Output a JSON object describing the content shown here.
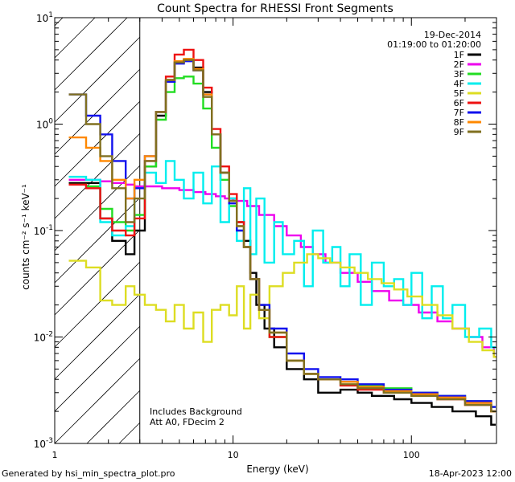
{
  "chart_data": {
    "type": "line",
    "title": "Count Spectra for RHESSI Front Segments",
    "xlabel": "Energy (keV)",
    "ylabel": "counts cm⁻² s⁻¹ keV⁻¹",
    "x_scale": "log",
    "y_scale": "log",
    "xlim": [
      1.0,
      300
    ],
    "ylim": [
      0.001,
      10
    ],
    "x_ticks": [
      {
        "v": 1,
        "label": "1"
      },
      {
        "v": 10,
        "label": "10"
      },
      {
        "v": 100,
        "label": "100"
      }
    ],
    "y_ticks": [
      {
        "v": 10,
        "base": "10",
        "exp": "1"
      },
      {
        "v": 1,
        "base": "10",
        "exp": "0"
      },
      {
        "v": 0.1,
        "base": "10",
        "exp": "-1"
      },
      {
        "v": 0.01,
        "base": "10",
        "exp": "-2"
      },
      {
        "v": 0.001,
        "base": "10",
        "exp": "-3"
      }
    ],
    "shaded_region": [
      1.0,
      3.0
    ],
    "annotations": {
      "date": "19-Dec-2014",
      "time_range": "01:19:00 to 01:20:00",
      "note1": "Includes Background",
      "note2": "Att A0, FDecim 2"
    },
    "legend_position": "top-right",
    "series": [
      {
        "name": "1F",
        "color": "#000000",
        "points": [
          [
            1.2,
            0.28
          ],
          [
            1.5,
            0.28
          ],
          [
            1.8,
            0.13
          ],
          [
            2.1,
            0.08
          ],
          [
            2.5,
            0.06
          ],
          [
            2.8,
            0.1
          ],
          [
            3.2,
            0.4
          ],
          [
            3.7,
            1.2
          ],
          [
            4.2,
            2.5
          ],
          [
            4.7,
            3.8
          ],
          [
            5.3,
            4.0
          ],
          [
            6,
            3.4
          ],
          [
            6.8,
            2.0
          ],
          [
            7.6,
            0.8
          ],
          [
            8.5,
            0.35
          ],
          [
            9.5,
            0.2
          ],
          [
            10.5,
            0.12
          ],
          [
            11.5,
            0.08
          ],
          [
            12.5,
            0.04
          ],
          [
            13.5,
            0.02
          ],
          [
            15,
            0.012
          ],
          [
            17,
            0.008
          ],
          [
            20,
            0.005
          ],
          [
            25,
            0.004
          ],
          [
            30,
            0.003
          ],
          [
            40,
            0.0032
          ],
          [
            50,
            0.003
          ],
          [
            60,
            0.0028
          ],
          [
            80,
            0.0026
          ],
          [
            100,
            0.0024
          ],
          [
            130,
            0.0022
          ],
          [
            170,
            0.002
          ],
          [
            230,
            0.0018
          ],
          [
            280,
            0.0015
          ]
        ]
      },
      {
        "name": "2F",
        "color": "#ee00ee",
        "points": [
          [
            1.2,
            0.3
          ],
          [
            1.5,
            0.3
          ],
          [
            1.8,
            0.29
          ],
          [
            2.1,
            0.28
          ],
          [
            2.5,
            0.27
          ],
          [
            2.8,
            0.26
          ],
          [
            3.2,
            0.26
          ],
          [
            4,
            0.25
          ],
          [
            5,
            0.24
          ],
          [
            6,
            0.23
          ],
          [
            7,
            0.22
          ],
          [
            8,
            0.21
          ],
          [
            9,
            0.2
          ],
          [
            10,
            0.19
          ],
          [
            12,
            0.17
          ],
          [
            14,
            0.14
          ],
          [
            17,
            0.11
          ],
          [
            20,
            0.09
          ],
          [
            24,
            0.07
          ],
          [
            28,
            0.06
          ],
          [
            33,
            0.05
          ],
          [
            40,
            0.04
          ],
          [
            50,
            0.033
          ],
          [
            60,
            0.027
          ],
          [
            75,
            0.022
          ],
          [
            90,
            0.02
          ],
          [
            110,
            0.017
          ],
          [
            140,
            0.014
          ],
          [
            170,
            0.012
          ],
          [
            210,
            0.01
          ],
          [
            250,
            0.008
          ],
          [
            290,
            0.0065
          ]
        ]
      },
      {
        "name": "3F",
        "color": "#22dd22",
        "points": [
          [
            1.2,
            0.27
          ],
          [
            1.5,
            0.26
          ],
          [
            1.8,
            0.16
          ],
          [
            2.1,
            0.12
          ],
          [
            2.5,
            0.1
          ],
          [
            2.8,
            0.14
          ],
          [
            3.2,
            0.4
          ],
          [
            3.7,
            1.1
          ],
          [
            4.2,
            2.0
          ],
          [
            4.7,
            2.7
          ],
          [
            5.3,
            2.8
          ],
          [
            6,
            2.4
          ],
          [
            6.8,
            1.4
          ],
          [
            7.6,
            0.6
          ],
          [
            8.5,
            0.3
          ],
          [
            9.5,
            0.17
          ],
          [
            10.5,
            0.1
          ],
          [
            11.5,
            0.07
          ],
          [
            12.5,
            0.035
          ],
          [
            14,
            0.018
          ],
          [
            16,
            0.01
          ],
          [
            20,
            0.006
          ],
          [
            25,
            0.0045
          ],
          [
            30,
            0.004
          ],
          [
            40,
            0.0038
          ],
          [
            50,
            0.0035
          ],
          [
            70,
            0.0033
          ],
          [
            100,
            0.003
          ],
          [
            140,
            0.0028
          ],
          [
            200,
            0.0025
          ],
          [
            280,
            0.0022
          ]
        ]
      },
      {
        "name": "4F",
        "color": "#00eeee",
        "points": [
          [
            1.2,
            0.32
          ],
          [
            1.5,
            0.3
          ],
          [
            1.8,
            0.12
          ],
          [
            2.1,
            0.09
          ],
          [
            2.5,
            0.11
          ],
          [
            2.8,
            0.25
          ],
          [
            3.2,
            0.35
          ],
          [
            3.7,
            0.28
          ],
          [
            4.2,
            0.45
          ],
          [
            4.7,
            0.3
          ],
          [
            5.3,
            0.2
          ],
          [
            6,
            0.35
          ],
          [
            6.8,
            0.18
          ],
          [
            7.6,
            0.4
          ],
          [
            8.5,
            0.12
          ],
          [
            9.5,
            0.2
          ],
          [
            10.5,
            0.08
          ],
          [
            11.5,
            0.25
          ],
          [
            12.5,
            0.06
          ],
          [
            13.5,
            0.2
          ],
          [
            15,
            0.05
          ],
          [
            17,
            0.12
          ],
          [
            19,
            0.06
          ],
          [
            22,
            0.08
          ],
          [
            25,
            0.03
          ],
          [
            28,
            0.1
          ],
          [
            32,
            0.05
          ],
          [
            36,
            0.07
          ],
          [
            40,
            0.03
          ],
          [
            45,
            0.06
          ],
          [
            52,
            0.02
          ],
          [
            60,
            0.05
          ],
          [
            70,
            0.03
          ],
          [
            80,
            0.035
          ],
          [
            90,
            0.02
          ],
          [
            100,
            0.04
          ],
          [
            115,
            0.015
          ],
          [
            130,
            0.03
          ],
          [
            150,
            0.015
          ],
          [
            170,
            0.02
          ],
          [
            200,
            0.01
          ],
          [
            240,
            0.012
          ],
          [
            280,
            0.008
          ]
        ]
      },
      {
        "name": "5F",
        "color": "#dddd22",
        "points": [
          [
            1.2,
            0.052
          ],
          [
            1.5,
            0.045
          ],
          [
            1.8,
            0.022
          ],
          [
            2.1,
            0.02
          ],
          [
            2.5,
            0.03
          ],
          [
            2.8,
            0.025
          ],
          [
            3.2,
            0.02
          ],
          [
            3.7,
            0.018
          ],
          [
            4.2,
            0.014
          ],
          [
            4.7,
            0.02
          ],
          [
            5.3,
            0.012
          ],
          [
            6,
            0.017
          ],
          [
            6.8,
            0.009
          ],
          [
            7.6,
            0.018
          ],
          [
            8.5,
            0.02
          ],
          [
            9.5,
            0.016
          ],
          [
            10.5,
            0.03
          ],
          [
            11.5,
            0.012
          ],
          [
            12.5,
            0.025
          ],
          [
            14,
            0.015
          ],
          [
            16,
            0.03
          ],
          [
            19,
            0.04
          ],
          [
            22,
            0.05
          ],
          [
            26,
            0.06
          ],
          [
            30,
            0.055
          ],
          [
            35,
            0.05
          ],
          [
            40,
            0.045
          ],
          [
            48,
            0.04
          ],
          [
            57,
            0.035
          ],
          [
            68,
            0.032
          ],
          [
            80,
            0.028
          ],
          [
            95,
            0.024
          ],
          [
            115,
            0.02
          ],
          [
            140,
            0.016
          ],
          [
            170,
            0.012
          ],
          [
            210,
            0.009
          ],
          [
            250,
            0.0075
          ],
          [
            290,
            0.0065
          ]
        ]
      },
      {
        "name": "6F",
        "color": "#ee1111",
        "points": [
          [
            1.2,
            0.27
          ],
          [
            1.5,
            0.25
          ],
          [
            1.8,
            0.13
          ],
          [
            2.1,
            0.1
          ],
          [
            2.5,
            0.09
          ],
          [
            2.8,
            0.13
          ],
          [
            3.2,
            0.45
          ],
          [
            3.7,
            1.3
          ],
          [
            4.2,
            2.8
          ],
          [
            4.7,
            4.5
          ],
          [
            5.3,
            5.0
          ],
          [
            6,
            4.0
          ],
          [
            6.8,
            2.2
          ],
          [
            7.6,
            0.9
          ],
          [
            8.5,
            0.4
          ],
          [
            9.5,
            0.22
          ],
          [
            10.5,
            0.12
          ],
          [
            11.5,
            0.07
          ],
          [
            12.5,
            0.035
          ],
          [
            14,
            0.018
          ],
          [
            16,
            0.01
          ],
          [
            20,
            0.006
          ],
          [
            25,
            0.0045
          ],
          [
            30,
            0.004
          ],
          [
            40,
            0.0035
          ],
          [
            50,
            0.0032
          ],
          [
            70,
            0.003
          ],
          [
            100,
            0.0028
          ],
          [
            140,
            0.0026
          ],
          [
            200,
            0.0023
          ],
          [
            280,
            0.002
          ]
        ]
      },
      {
        "name": "7F",
        "color": "#1111ee",
        "points": [
          [
            1.2,
            1.9
          ],
          [
            1.5,
            1.2
          ],
          [
            1.8,
            0.8
          ],
          [
            2.1,
            0.45
          ],
          [
            2.5,
            0.2
          ],
          [
            2.8,
            0.25
          ],
          [
            3.2,
            0.5
          ],
          [
            3.7,
            1.3
          ],
          [
            4.2,
            2.5
          ],
          [
            4.7,
            3.7
          ],
          [
            5.3,
            3.9
          ],
          [
            6,
            3.2
          ],
          [
            6.8,
            1.9
          ],
          [
            7.6,
            0.8
          ],
          [
            8.5,
            0.35
          ],
          [
            9.5,
            0.18
          ],
          [
            10.5,
            0.1
          ],
          [
            11.5,
            0.07
          ],
          [
            12.5,
            0.035
          ],
          [
            14,
            0.02
          ],
          [
            16,
            0.012
          ],
          [
            20,
            0.007
          ],
          [
            25,
            0.005
          ],
          [
            30,
            0.0042
          ],
          [
            40,
            0.004
          ],
          [
            50,
            0.0036
          ],
          [
            70,
            0.0032
          ],
          [
            100,
            0.003
          ],
          [
            140,
            0.0028
          ],
          [
            200,
            0.0025
          ],
          [
            280,
            0.0022
          ]
        ]
      },
      {
        "name": "8F",
        "color": "#ff8800",
        "points": [
          [
            1.2,
            0.75
          ],
          [
            1.5,
            0.6
          ],
          [
            1.8,
            0.45
          ],
          [
            2.1,
            0.3
          ],
          [
            2.5,
            0.2
          ],
          [
            2.8,
            0.3
          ],
          [
            3.2,
            0.5
          ],
          [
            3.7,
            1.3
          ],
          [
            4.2,
            2.6
          ],
          [
            4.7,
            3.9
          ],
          [
            5.3,
            4.1
          ],
          [
            6,
            3.3
          ],
          [
            6.8,
            1.9
          ],
          [
            7.6,
            0.8
          ],
          [
            8.5,
            0.35
          ],
          [
            9.5,
            0.19
          ],
          [
            10.5,
            0.11
          ],
          [
            11.5,
            0.07
          ],
          [
            12.5,
            0.035
          ],
          [
            14,
            0.018
          ],
          [
            16,
            0.011
          ],
          [
            20,
            0.006
          ],
          [
            25,
            0.0045
          ],
          [
            30,
            0.004
          ],
          [
            40,
            0.0038
          ],
          [
            50,
            0.0034
          ],
          [
            70,
            0.0031
          ],
          [
            100,
            0.0029
          ],
          [
            140,
            0.0027
          ],
          [
            200,
            0.0024
          ],
          [
            280,
            0.002
          ]
        ]
      },
      {
        "name": "9F",
        "color": "#807020",
        "points": [
          [
            1.2,
            1.9
          ],
          [
            1.5,
            1.0
          ],
          [
            1.8,
            0.5
          ],
          [
            2.1,
            0.25
          ],
          [
            2.5,
            0.12
          ],
          [
            2.8,
            0.2
          ],
          [
            3.2,
            0.45
          ],
          [
            3.7,
            1.3
          ],
          [
            4.2,
            2.6
          ],
          [
            4.7,
            3.8
          ],
          [
            5.3,
            4.0
          ],
          [
            6,
            3.2
          ],
          [
            6.8,
            1.8
          ],
          [
            7.6,
            0.8
          ],
          [
            8.5,
            0.35
          ],
          [
            9.5,
            0.19
          ],
          [
            10.5,
            0.11
          ],
          [
            11.5,
            0.07
          ],
          [
            12.5,
            0.035
          ],
          [
            14,
            0.018
          ],
          [
            16,
            0.011
          ],
          [
            20,
            0.006
          ],
          [
            25,
            0.0045
          ],
          [
            30,
            0.004
          ],
          [
            40,
            0.0036
          ],
          [
            50,
            0.0033
          ],
          [
            70,
            0.003
          ],
          [
            100,
            0.0028
          ],
          [
            140,
            0.0026
          ],
          [
            200,
            0.0023
          ],
          [
            280,
            0.002
          ]
        ]
      }
    ]
  },
  "footer": {
    "generated_by": "Generated by hsi_min_spectra_plot.pro",
    "date": "18-Apr-2023 12:00"
  }
}
